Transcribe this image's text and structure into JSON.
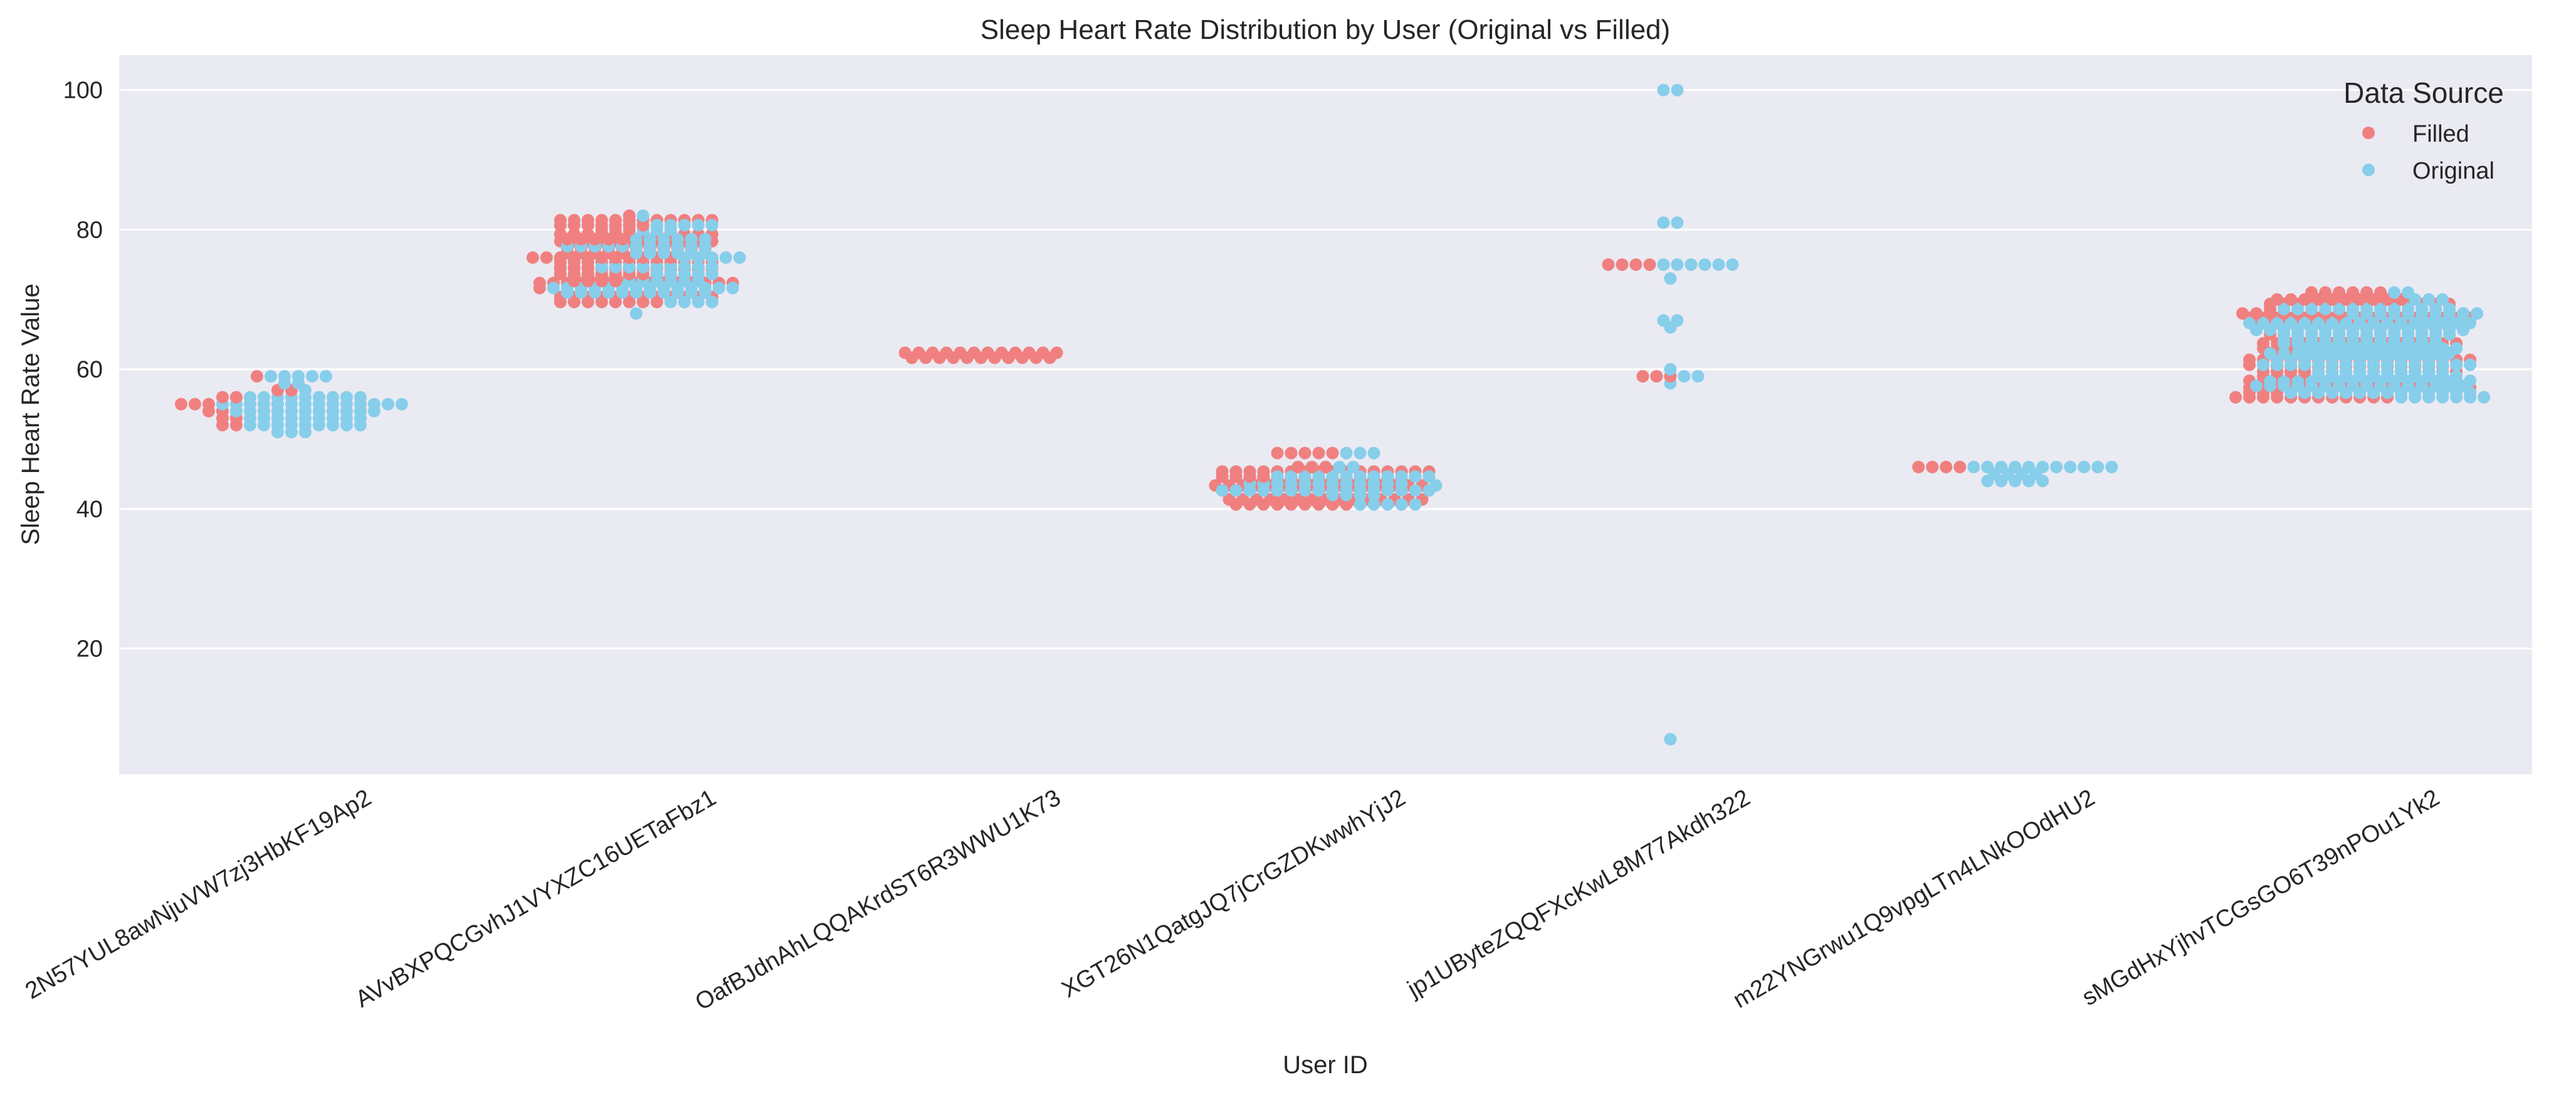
{
  "chart_data": {
    "type": "scatter",
    "subtype": "swarm",
    "title": "Sleep Heart Rate Distribution by User (Original vs Filled)",
    "xlabel": "User ID",
    "ylabel": "Sleep Heart Rate Value",
    "ylim": [
      2,
      105
    ],
    "yticks": [
      20,
      40,
      60,
      80,
      100
    ],
    "grid": true,
    "legend": {
      "title": "Data Source",
      "position": "top-right"
    },
    "categories": [
      "2N57YUL8awNjuVW7zj3HbKF19Ap2",
      "AVvBXPQCGvhJ1VYXZC16UETaFbz1",
      "OafBJdnAhLQQAKrdST6R3WWU1K73",
      "XGT26N1QatgJQ7jCrGZDKwwhYjJ2",
      "jp1UByteZQQFXcKwL8M77Akdh322",
      "m22YNGrwu1Q9vpgLTn4LNkOOdHU2",
      "sMGdHxYjhvTCGsGO6T39nPOu1Yk2"
    ],
    "series": [
      {
        "name": "Filled",
        "color": "#f08080",
        "values": [
          [
            52,
            52,
            53,
            53,
            54,
            54,
            55,
            55,
            55,
            56,
            56,
            57,
            57,
            59
          ],
          [
            70,
            70,
            70,
            70,
            70,
            70,
            70,
            70,
            70,
            70,
            70,
            70,
            70,
            70,
            70,
            70,
            70,
            70,
            70,
            70,
            72,
            72,
            72,
            72,
            72,
            72,
            72,
            72,
            72,
            72,
            72,
            72,
            72,
            72,
            72,
            72,
            73,
            73,
            73,
            73,
            73,
            73,
            73,
            73,
            73,
            73,
            73,
            73,
            73,
            73,
            74,
            74,
            74,
            74,
            74,
            74,
            74,
            74,
            74,
            74,
            74,
            74,
            74,
            74,
            74,
            74,
            74,
            74,
            74,
            75,
            75,
            75,
            75,
            75,
            75,
            75,
            75,
            75,
            75,
            75,
            75,
            75,
            75,
            75,
            76,
            76,
            76,
            76,
            76,
            76,
            76,
            76,
            76,
            76,
            76,
            77,
            77,
            77,
            77,
            77,
            77,
            77,
            77,
            77,
            77,
            77,
            77,
            77,
            77,
            77,
            77,
            78,
            78,
            78,
            78,
            78,
            78,
            78,
            78,
            78,
            78,
            78,
            78,
            79,
            79,
            79,
            79,
            79,
            79,
            79,
            79,
            79,
            79,
            79,
            79,
            79,
            79,
            79,
            79,
            79,
            80,
            80,
            80,
            81,
            81,
            81,
            81,
            81,
            81,
            81,
            81,
            81,
            81,
            81,
            81,
            81,
            81,
            81,
            81,
            81,
            81,
            81,
            82
          ],
          [
            62,
            62,
            62,
            62,
            62,
            62,
            62,
            62,
            62,
            62,
            62,
            62,
            62,
            62,
            62,
            62,
            62,
            62,
            62,
            62,
            62,
            62,
            62
          ],
          [
            41,
            41,
            41,
            41,
            41,
            41,
            41,
            41,
            41,
            41,
            41,
            41,
            41,
            41,
            41,
            41,
            41,
            41,
            41,
            41,
            41,
            41,
            41,
            41,
            42,
            42,
            42,
            42,
            43,
            43,
            43,
            43,
            43,
            43,
            43,
            43,
            43,
            43,
            43,
            43,
            43,
            43,
            43,
            43,
            44,
            44,
            44,
            44,
            44,
            44,
            44,
            44,
            44,
            44,
            44,
            44,
            45,
            45,
            45,
            45,
            45,
            45,
            45,
            45,
            45,
            45,
            45,
            45,
            45,
            45,
            45,
            45,
            45,
            45,
            45,
            45,
            46,
            46,
            46,
            48,
            48,
            48,
            48,
            48
          ],
          [
            59,
            59,
            59,
            75,
            75,
            75,
            75
          ],
          [
            46,
            46,
            46,
            46
          ],
          [
            56,
            56,
            56,
            56,
            56,
            56,
            56,
            56,
            56,
            56,
            56,
            56,
            57,
            57,
            57,
            57,
            57,
            57,
            57,
            57,
            57,
            57,
            57,
            57,
            57,
            57,
            57,
            57,
            57,
            57,
            57,
            57,
            58,
            58,
            58,
            58,
            58,
            58,
            58,
            58,
            58,
            58,
            58,
            58,
            58,
            58,
            59,
            59,
            59,
            59,
            59,
            59,
            59,
            59,
            59,
            59,
            59,
            59,
            59,
            59,
            59,
            59,
            59,
            59,
            59,
            60,
            60,
            60,
            60,
            60,
            60,
            60,
            60,
            60,
            60,
            60,
            60,
            60,
            60,
            60,
            60,
            61,
            61,
            61,
            61,
            61,
            61,
            61,
            61,
            61,
            61,
            61,
            61,
            61,
            61,
            61,
            61,
            61,
            61,
            62,
            62,
            62,
            62,
            62,
            62,
            62,
            62,
            62,
            62,
            62,
            62,
            63,
            63,
            63,
            63,
            63,
            63,
            63,
            63,
            63,
            63,
            63,
            63,
            63,
            63,
            63,
            63,
            63,
            63,
            64,
            64,
            64,
            64,
            64,
            64,
            64,
            64,
            64,
            64,
            64,
            64,
            65,
            65,
            65,
            65,
            65,
            65,
            65,
            65,
            65,
            65,
            65,
            65,
            65,
            65,
            65,
            66,
            66,
            66,
            66,
            66,
            66,
            66,
            66,
            66,
            66,
            66,
            66,
            67,
            67,
            67,
            67,
            67,
            67,
            67,
            67,
            67,
            67,
            67,
            67,
            67,
            67,
            67,
            67,
            67,
            68,
            68,
            68,
            68,
            68,
            68,
            68,
            68,
            69,
            69,
            69,
            69,
            69,
            69,
            69,
            69,
            69,
            69,
            69,
            69,
            69,
            69,
            69,
            70,
            70,
            70,
            70,
            70,
            70,
            70,
            70,
            70,
            70,
            71,
            71,
            71,
            71,
            71,
            71
          ]
        ]
      },
      {
        "name": "Original",
        "color": "#87ceeb",
        "values": [
          [
            51,
            51,
            51,
            52,
            52,
            52,
            52,
            52,
            52,
            52,
            52,
            52,
            53,
            53,
            53,
            53,
            53,
            53,
            53,
            53,
            53,
            54,
            54,
            54,
            54,
            54,
            54,
            54,
            54,
            54,
            54,
            54,
            55,
            55,
            55,
            55,
            55,
            55,
            55,
            55,
            55,
            55,
            55,
            55,
            55,
            55,
            56,
            56,
            56,
            56,
            56,
            56,
            56,
            56,
            56,
            57,
            58,
            58,
            59,
            59,
            59,
            59,
            59
          ],
          [
            68,
            70,
            70,
            70,
            70,
            71,
            71,
            71,
            71,
            71,
            71,
            71,
            71,
            71,
            71,
            71,
            72,
            72,
            72,
            72,
            72,
            72,
            72,
            72,
            72,
            72,
            72,
            72,
            72,
            72,
            73,
            73,
            73,
            73,
            73,
            73,
            74,
            74,
            74,
            74,
            74,
            75,
            75,
            75,
            75,
            75,
            75,
            75,
            75,
            75,
            76,
            76,
            76,
            76,
            76,
            77,
            77,
            77,
            77,
            77,
            77,
            78,
            78,
            78,
            78,
            78,
            78,
            78,
            78,
            78,
            78,
            78,
            79,
            79,
            79,
            79,
            79,
            79,
            80,
            80,
            80,
            81,
            81,
            81,
            81,
            81,
            82
          ],
          [],
          [
            41,
            41,
            41,
            41,
            41,
            42,
            42,
            42,
            42,
            43,
            43,
            43,
            43,
            43,
            43,
            43,
            43,
            43,
            43,
            43,
            43,
            43,
            43,
            43,
            43,
            43,
            44,
            44,
            44,
            44,
            44,
            44,
            44,
            44,
            44,
            44,
            44,
            44,
            45,
            45,
            45,
            45,
            45,
            45,
            45,
            45,
            45,
            45,
            45,
            45,
            46,
            46,
            48,
            48,
            48
          ],
          [
            7,
            58,
            59,
            59,
            60,
            66,
            67,
            67,
            73,
            75,
            75,
            75,
            75,
            75,
            75,
            81,
            81,
            100,
            100
          ],
          [
            44,
            44,
            44,
            44,
            44,
            45,
            45,
            45,
            45,
            46,
            46,
            46,
            46,
            46,
            46,
            46,
            46,
            46,
            46,
            46
          ],
          [
            56,
            56,
            56,
            56,
            56,
            56,
            56,
            57,
            57,
            57,
            57,
            57,
            57,
            57,
            57,
            57,
            57,
            57,
            57,
            57,
            57,
            58,
            58,
            58,
            58,
            58,
            58,
            58,
            58,
            58,
            58,
            58,
            58,
            58,
            58,
            58,
            58,
            58,
            58,
            58,
            59,
            59,
            59,
            59,
            59,
            59,
            59,
            59,
            59,
            59,
            59,
            59,
            59,
            59,
            59,
            59,
            59,
            59,
            59,
            59,
            59,
            59,
            59,
            59,
            59,
            60,
            60,
            60,
            60,
            60,
            60,
            60,
            60,
            60,
            60,
            61,
            61,
            61,
            61,
            61,
            61,
            61,
            61,
            61,
            61,
            61,
            61,
            61,
            61,
            61,
            61,
            62,
            62,
            62,
            62,
            62,
            62,
            62,
            62,
            62,
            62,
            62,
            62,
            62,
            62,
            62,
            63,
            63,
            63,
            63,
            63,
            63,
            63,
            63,
            63,
            63,
            63,
            63,
            63,
            63,
            63,
            63,
            63,
            63,
            63,
            63,
            63,
            63,
            63,
            63,
            63,
            63,
            64,
            64,
            64,
            64,
            64,
            64,
            64,
            64,
            64,
            64,
            64,
            64,
            65,
            65,
            65,
            65,
            65,
            65,
            65,
            65,
            65,
            65,
            65,
            65,
            65,
            65,
            65,
            65,
            65,
            65,
            65,
            65,
            65,
            65,
            65,
            65,
            65,
            66,
            66,
            66,
            66,
            66,
            66,
            66,
            66,
            66,
            66,
            66,
            66,
            66,
            66,
            66,
            66,
            66,
            66,
            66,
            66,
            67,
            67,
            67,
            67,
            67,
            67,
            67,
            67,
            67,
            67,
            67,
            67,
            67,
            67,
            67,
            67,
            67,
            68,
            68,
            68,
            68,
            68,
            68,
            68,
            68,
            68,
            68,
            69,
            69,
            69,
            69,
            69,
            69,
            69,
            69,
            69,
            69,
            69,
            69,
            69,
            70,
            70,
            70,
            71,
            71
          ]
        ]
      }
    ]
  }
}
